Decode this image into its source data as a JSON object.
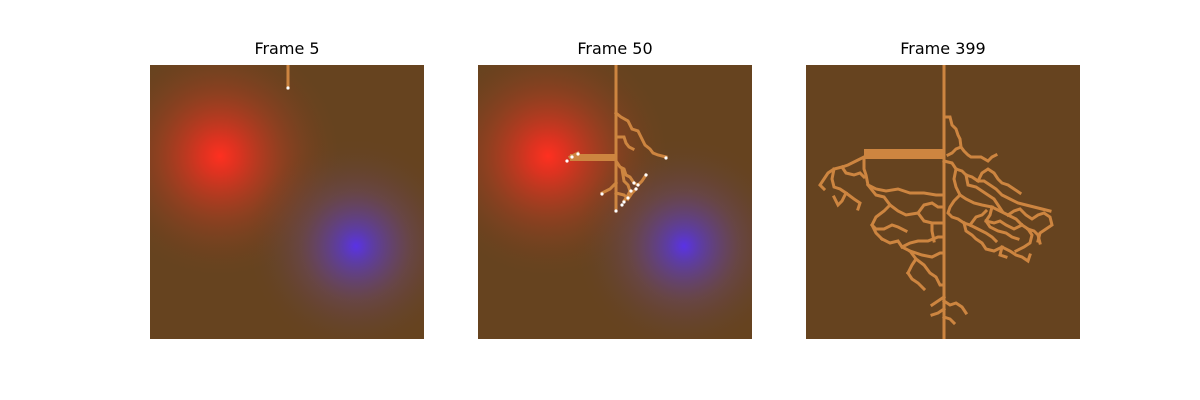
{
  "colors": {
    "soil": "#66431f",
    "root": "#cd8540",
    "tip": "#ffffff",
    "nutrient_red": "#ff3020",
    "nutrient_blue": "#5a32e6"
  },
  "panels": [
    {
      "title": "Frame 5",
      "show_red_source": true,
      "show_blue_source": true,
      "show_tips": true
    },
    {
      "title": "Frame 50",
      "show_red_source": true,
      "show_blue_source": true,
      "show_tips": true
    },
    {
      "title": "Frame 399",
      "show_red_source": false,
      "show_blue_source": false,
      "show_tips": false
    }
  ]
}
